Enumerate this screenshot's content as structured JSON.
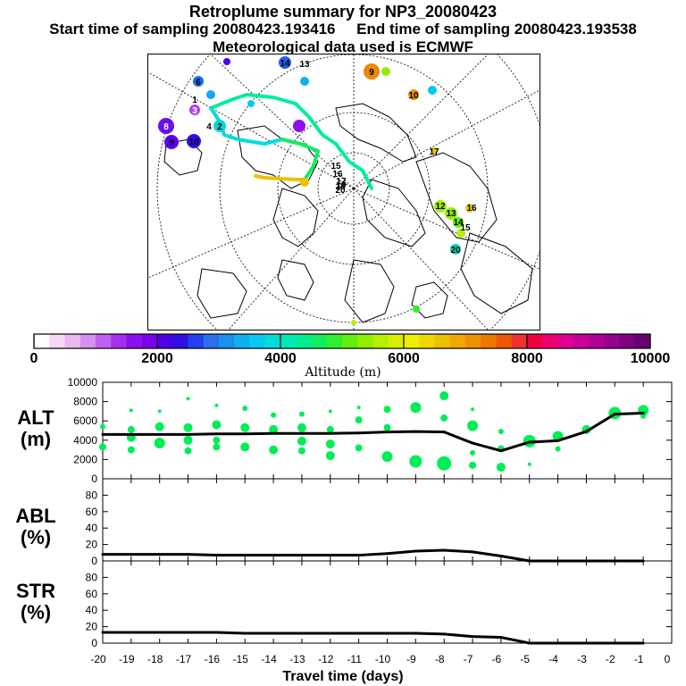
{
  "header": {
    "title": "Retroplume summary for NP3_20080423",
    "start_label": "Start time of sampling 20080423.193416",
    "end_label": "End time of sampling 20080423.193538",
    "met_label": "Meteorological data used is ECMWF"
  },
  "colorbar": {
    "label": "Altitude (m)",
    "ticks": [
      "0",
      "2000",
      "4000",
      "6000",
      "8000",
      "10000"
    ],
    "colors": [
      "#ffffff",
      "#f5d8f5",
      "#eab8f0",
      "#d890ee",
      "#c060ee",
      "#a430ee",
      "#8c10ee",
      "#7a00ee",
      "#5000e8",
      "#3010e0",
      "#2040f0",
      "#2870f0",
      "#1890f0",
      "#10b0f0",
      "#08c8f0",
      "#00dcdc",
      "#00e8b8",
      "#00ee90",
      "#10ee60",
      "#30ee30",
      "#60ee10",
      "#90ee00",
      "#b8ee00",
      "#d8ee00",
      "#eeee00",
      "#eed800",
      "#eec000",
      "#eea800",
      "#ee9000",
      "#ee7800",
      "#ee5800",
      "#ee3030",
      "#ee0040",
      "#ee0070",
      "#e00090",
      "#c8009a",
      "#b0009a",
      "#980090",
      "#800080",
      "#680070"
    ]
  },
  "map": {
    "labels": [
      {
        "t": "6",
        "c": "#1a6cf0"
      },
      {
        "t": "8",
        "c": "#6a10ee"
      },
      {
        "t": "9",
        "c": "#5a00ee"
      },
      {
        "t": "10",
        "c": "#5a00ee"
      },
      {
        "t": "3",
        "c": "#b040ee"
      },
      {
        "t": "1",
        "c": "#2070f0"
      },
      {
        "t": "2",
        "c": "#00d8d8"
      },
      {
        "t": "4",
        "c": "#00e0c0"
      },
      {
        "t": "9",
        "c": "#ee8800"
      },
      {
        "t": "10",
        "c": "#ee9000"
      },
      {
        "t": "13",
        "c": "#10aaf0"
      },
      {
        "t": "14",
        "c": "#2060f0"
      },
      {
        "t": "12",
        "c": "#aaee00"
      },
      {
        "t": "13",
        "c": "#90ee00"
      },
      {
        "t": "14",
        "c": "#60ee10"
      },
      {
        "t": "15",
        "c": "#60ee10"
      },
      {
        "t": "16",
        "c": "#b8ee00"
      },
      {
        "t": "17",
        "c": "#eecc00"
      },
      {
        "t": "20",
        "c": "#00dcb0"
      }
    ],
    "trajectory_labels": [
      "15",
      "16",
      "17",
      "18",
      "19",
      "20"
    ]
  },
  "chart_data": [
    {
      "type": "line",
      "title": "ALT",
      "ylabel": "ALT (m)",
      "xlabel": "Travel time (days)",
      "xlim": [
        -20,
        0
      ],
      "ylim": [
        0,
        10000
      ],
      "yticks": [
        "0",
        "2000",
        "4000",
        "6000",
        "8000",
        "10000"
      ],
      "x": [
        -20,
        -19,
        -18,
        -17,
        -16,
        -15,
        -14,
        -13,
        -12,
        -11,
        -10,
        -9,
        -8,
        -7,
        -6,
        -5,
        -4,
        -3,
        -2,
        -1
      ],
      "values": [
        4600,
        4600,
        4600,
        4600,
        4650,
        4650,
        4700,
        4700,
        4700,
        4750,
        4850,
        4900,
        4850,
        3700,
        2900,
        3800,
        3950,
        4900,
        6700,
        6800
      ],
      "scatter_color": "#00ee55",
      "clusters": [
        {
          "x": -20,
          "y": 3300,
          "r": 4
        },
        {
          "x": -20,
          "y": 5400,
          "r": 3
        },
        {
          "x": -19,
          "y": 3000,
          "r": 4
        },
        {
          "x": -19,
          "y": 4300,
          "r": 5
        },
        {
          "x": -19,
          "y": 5100,
          "r": 4
        },
        {
          "x": -19,
          "y": 7100,
          "r": 2
        },
        {
          "x": -18,
          "y": 3700,
          "r": 6
        },
        {
          "x": -18,
          "y": 5400,
          "r": 5
        },
        {
          "x": -18,
          "y": 7000,
          "r": 2
        },
        {
          "x": -17,
          "y": 2900,
          "r": 4
        },
        {
          "x": -17,
          "y": 4000,
          "r": 5
        },
        {
          "x": -17,
          "y": 5300,
          "r": 5
        },
        {
          "x": -17,
          "y": 8300,
          "r": 2
        },
        {
          "x": -16,
          "y": 3300,
          "r": 4
        },
        {
          "x": -16,
          "y": 4000,
          "r": 4
        },
        {
          "x": -16,
          "y": 5600,
          "r": 5
        },
        {
          "x": -16,
          "y": 7600,
          "r": 2
        },
        {
          "x": -15,
          "y": 3300,
          "r": 5
        },
        {
          "x": -15,
          "y": 5300,
          "r": 5
        },
        {
          "x": -15,
          "y": 7300,
          "r": 3
        },
        {
          "x": -14,
          "y": 3000,
          "r": 5
        },
        {
          "x": -14,
          "y": 5100,
          "r": 5
        },
        {
          "x": -14,
          "y": 6600,
          "r": 3
        },
        {
          "x": -13,
          "y": 2900,
          "r": 4
        },
        {
          "x": -13,
          "y": 3900,
          "r": 5
        },
        {
          "x": -13,
          "y": 5300,
          "r": 5
        },
        {
          "x": -13,
          "y": 6700,
          "r": 3
        },
        {
          "x": -12,
          "y": 2400,
          "r": 5
        },
        {
          "x": -12,
          "y": 3600,
          "r": 5
        },
        {
          "x": -12,
          "y": 5100,
          "r": 4
        },
        {
          "x": -12,
          "y": 7000,
          "r": 2
        },
        {
          "x": -11,
          "y": 3200,
          "r": 4
        },
        {
          "x": -11,
          "y": 6100,
          "r": 4
        },
        {
          "x": -11,
          "y": 7400,
          "r": 2
        },
        {
          "x": -10,
          "y": 2300,
          "r": 6
        },
        {
          "x": -10,
          "y": 5300,
          "r": 4
        },
        {
          "x": -10,
          "y": 7200,
          "r": 4
        },
        {
          "x": -9,
          "y": 1800,
          "r": 7
        },
        {
          "x": -9,
          "y": 7400,
          "r": 6
        },
        {
          "x": -8,
          "y": 1600,
          "r": 8
        },
        {
          "x": -8,
          "y": 6300,
          "r": 4
        },
        {
          "x": -8,
          "y": 8600,
          "r": 5
        },
        {
          "x": -7,
          "y": 1400,
          "r": 4
        },
        {
          "x": -7,
          "y": 2700,
          "r": 3
        },
        {
          "x": -7,
          "y": 5500,
          "r": 6
        },
        {
          "x": -7,
          "y": 7200,
          "r": 2
        },
        {
          "x": -6,
          "y": 1200,
          "r": 5
        },
        {
          "x": -6,
          "y": 3100,
          "r": 4
        },
        {
          "x": -6,
          "y": 4900,
          "r": 3
        },
        {
          "x": -5,
          "y": 1500,
          "r": 2
        },
        {
          "x": -5,
          "y": 3900,
          "r": 7
        },
        {
          "x": -4,
          "y": 3100,
          "r": 3
        },
        {
          "x": -4,
          "y": 4400,
          "r": 6
        },
        {
          "x": -3,
          "y": 5100,
          "r": 5
        },
        {
          "x": -2,
          "y": 6800,
          "r": 7
        },
        {
          "x": -1,
          "y": 7100,
          "r": 6
        },
        {
          "x": -1,
          "y": 6500,
          "r": 3
        }
      ]
    },
    {
      "type": "line",
      "title": "ABL",
      "ylabel": "ABL (%)",
      "xlim": [
        -20,
        0
      ],
      "ylim": [
        0,
        100
      ],
      "yticks": [
        "0",
        "20",
        "40",
        "60",
        "80"
      ],
      "x": [
        -20,
        -19,
        -18,
        -17,
        -16,
        -15,
        -14,
        -13,
        -12,
        -11,
        -10,
        -9,
        -8,
        -7,
        -6,
        -5,
        -4,
        -3,
        -2,
        -1
      ],
      "values": [
        8,
        8,
        8,
        8,
        7,
        7,
        7,
        7,
        7,
        7,
        9,
        12,
        13,
        11,
        6,
        0,
        0,
        0,
        0,
        0
      ]
    },
    {
      "type": "line",
      "title": "STR",
      "ylabel": "STR (%)",
      "xlim": [
        -20,
        0
      ],
      "ylim": [
        0,
        100
      ],
      "yticks": [
        "0",
        "20",
        "40",
        "60",
        "80"
      ],
      "x": [
        -20,
        -19,
        -18,
        -17,
        -16,
        -15,
        -14,
        -13,
        -12,
        -11,
        -10,
        -9,
        -8,
        -7,
        -6,
        -5,
        -4,
        -3,
        -2,
        -1
      ],
      "values": [
        13,
        13,
        13,
        13,
        13,
        12,
        12,
        12,
        12,
        12,
        12,
        12,
        11,
        8,
        7,
        0,
        0,
        0,
        0,
        0
      ]
    }
  ],
  "x_axis": {
    "title": "Travel time (days)",
    "ticks": [
      "-20",
      "-19",
      "-18",
      "-17",
      "-16",
      "-15",
      "-14",
      "-13",
      "-12",
      "-11",
      "-10",
      "-9",
      "-8",
      "-7",
      "-6",
      "-5",
      "-4",
      "-3",
      "-2",
      "-1",
      "0"
    ]
  },
  "ylabels": {
    "alt": [
      "ALT",
      "(m)"
    ],
    "abl": [
      "ABL",
      "(%)"
    ],
    "str": [
      "STR",
      "(%)"
    ]
  }
}
